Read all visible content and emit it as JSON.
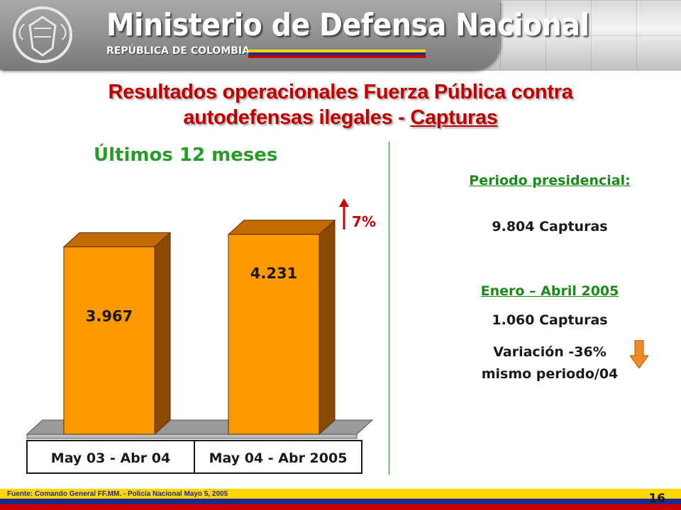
{
  "header": {
    "title": "Ministerio de Defensa Nacional",
    "subtitle": "REPÚBLICA DE COLOMBIA"
  },
  "slide": {
    "title_line1": "Resultados operacionales Fuerza Pública contra",
    "title_line2": "autodefensas ilegales - ",
    "title_emph": "Capturas",
    "left_heading": "Últimos 12 meses"
  },
  "stats": {
    "period_label": "Periodo presidencial:",
    "period_value": "9.804 Capturas",
    "range_label": "Enero – Abril 2005",
    "range_value": "1.060 Capturas",
    "variation_line1": "Variación -36%",
    "variation_line2": "mismo periodo/04"
  },
  "colors": {
    "title_red": "#c00000",
    "heading_green": "#2a9a2a",
    "bar_front": "#ff9900",
    "bar_side": "#8a4a00",
    "bar_top": "#c06a00",
    "arrow_red": "#cc0000",
    "down_arrow": "#f08a24"
  },
  "chart_data": {
    "type": "bar",
    "categories": [
      "May 03 - Abr 04",
      "May 04 - Abr 2005"
    ],
    "values": [
      3967,
      4231
    ],
    "value_labels": [
      "3.967",
      "4.231"
    ],
    "change_label": "7%",
    "ylim": [
      0,
      4500
    ]
  },
  "footer": {
    "source": "Fuente:  Comando  General  FF.MM.  -  Policía Nacional   Mayo  5,  2005",
    "page": "16"
  }
}
